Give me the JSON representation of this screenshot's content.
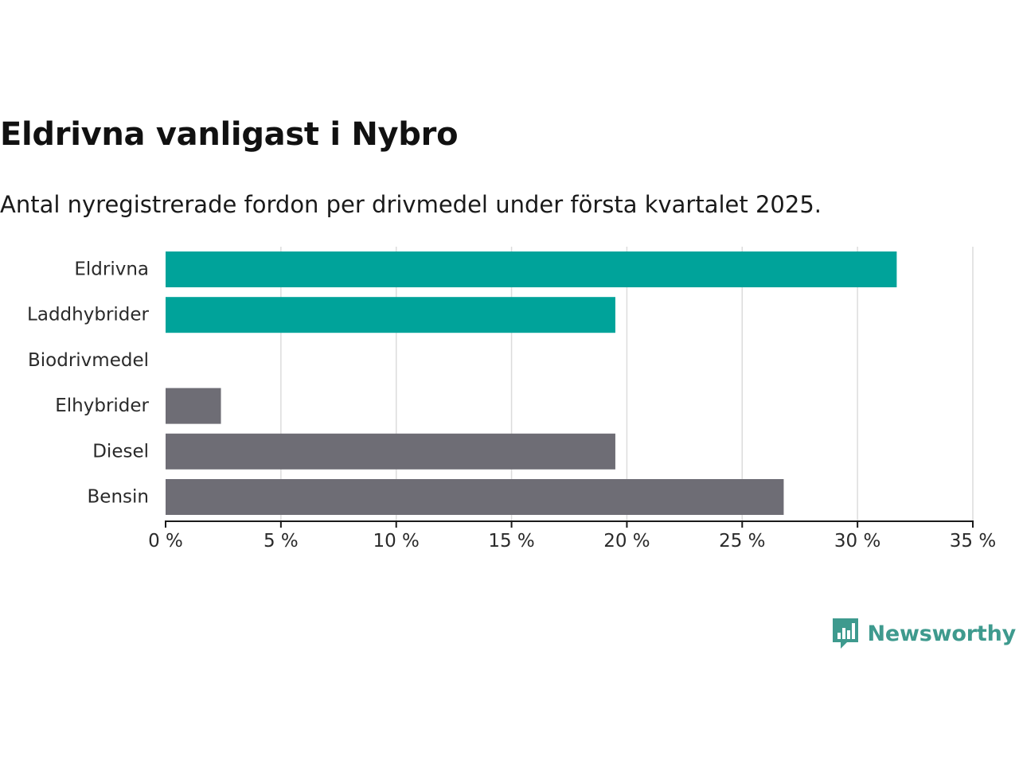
{
  "header": {
    "title": "Eldrivna vanligast i Nybro",
    "subtitle": "Antal nyregistrerade fordon per drivmedel under första kvartalet 2025."
  },
  "brand": {
    "name": "Newsworthy",
    "icon": "bar-chart-speech-bubble-icon",
    "color": "#3e9a8e"
  },
  "colors": {
    "highlight": "#00a39a",
    "other": "#6e6d75",
    "grid": "#dcdcdc",
    "axis": "#1a1a1a"
  },
  "chart_data": {
    "type": "bar",
    "orientation": "horizontal",
    "categories": [
      "Eldrivna",
      "Laddhybrider",
      "Biodrivmedel",
      "Elhybrider",
      "Diesel",
      "Bensin"
    ],
    "values": [
      31.7,
      19.5,
      0,
      2.4,
      19.5,
      26.8
    ],
    "highlighted": [
      true,
      true,
      false,
      false,
      false,
      false
    ],
    "xlim": [
      0,
      35
    ],
    "xticks": [
      0,
      5,
      10,
      15,
      20,
      25,
      30,
      35
    ],
    "tick_suffix": " %",
    "grid": "vertical"
  }
}
